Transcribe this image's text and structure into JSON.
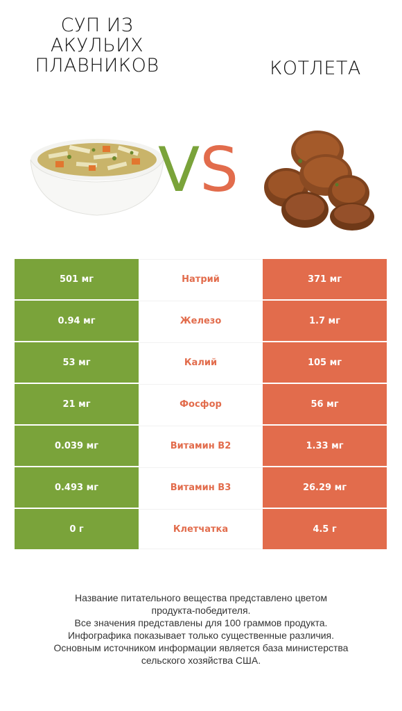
{
  "left_food": {
    "title": "СУП ИЗ АКУЛЬИХ ПЛАВНИКОВ"
  },
  "right_food": {
    "title": "КОТЛЕТА"
  },
  "vs": {
    "v": "V",
    "s": "S"
  },
  "colors": {
    "winner_left": "#7aa33a",
    "winner_right": "#e26c4c"
  },
  "rows": [
    {
      "left": "501 мг",
      "nutrient": "Натрий",
      "right": "371 мг"
    },
    {
      "left": "0.94 мг",
      "nutrient": "Железо",
      "right": "1.7 мг"
    },
    {
      "left": "53 мг",
      "nutrient": "Калий",
      "right": "105 мг"
    },
    {
      "left": "21 мг",
      "nutrient": "Фосфор",
      "right": "56 мг"
    },
    {
      "left": "0.039 мг",
      "nutrient": "Витамин B2",
      "right": "1.33 мг"
    },
    {
      "left": "0.493 мг",
      "nutrient": "Витамин B3",
      "right": "26.29 мг"
    },
    {
      "left": "0 г",
      "nutrient": "Клетчатка",
      "right": "4.5 г"
    }
  ],
  "footnote": {
    "line1": "Название питательного вещества представлено цветом\nпродукта-победителя.",
    "line2": "Все значения представлены для 100 граммов продукта.",
    "line3": "Инфографика показывает только существенные различия.",
    "line4": "Основным источником информации является база министерства\nсельского хозяйства США."
  }
}
